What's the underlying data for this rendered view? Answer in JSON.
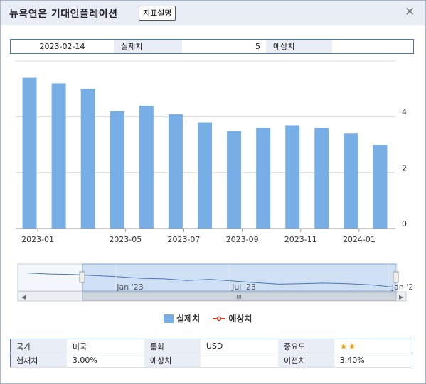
{
  "window": {
    "title": "뉴욕연은 기대인플레이션",
    "desc_button": "지표설명",
    "close_icon": "close-icon"
  },
  "info": {
    "date": "2023-02-14",
    "actual_label": "실제치",
    "actual_value": "5",
    "forecast_label": "예상치",
    "forecast_value": ""
  },
  "chart_data": {
    "type": "bar",
    "x_tick_labels": [
      "2023-01",
      "2023-05",
      "2023-07",
      "2023-09",
      "2023-11",
      "2024-01"
    ],
    "y_tick_labels": [
      "0",
      "2",
      "4"
    ],
    "ylim": [
      0,
      6
    ],
    "y_axis_side": "right",
    "grid": true,
    "series": [
      {
        "name": "실제치",
        "color": "#77aee6",
        "values": [
          5.4,
          5.2,
          5.0,
          4.2,
          4.4,
          4.1,
          3.8,
          3.5,
          3.6,
          3.7,
          3.6,
          3.4,
          3.0
        ]
      }
    ],
    "legend": {
      "position": "bottom-center",
      "items": [
        "실제치",
        "예상치"
      ]
    },
    "navigator": {
      "tick_labels": [
        "Jan '23",
        "Jul '23",
        "Jan '2"
      ],
      "scroll_grip": "III"
    }
  },
  "meta": {
    "country_label": "국가",
    "country_value": "미국",
    "currency_label": "통화",
    "currency_value": "USD",
    "importance_label": "중요도",
    "importance_stars": 2,
    "current_label": "현재치",
    "current_value": "3.00%",
    "forecast_label": "예상치",
    "forecast_value": "",
    "previous_label": "이전치",
    "previous_value": "3.40%"
  }
}
